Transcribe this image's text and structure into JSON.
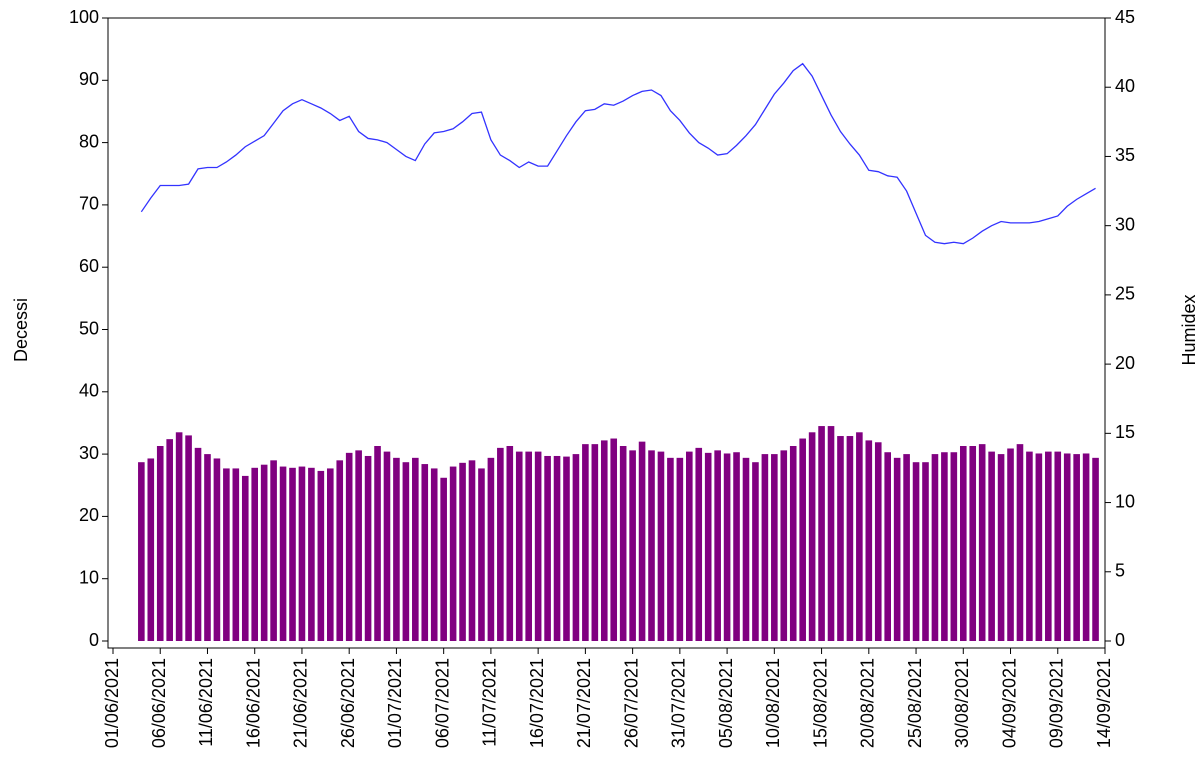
{
  "chart_data": {
    "type": "bar",
    "y_label": "Decessi",
    "y2_label": "Humidex",
    "xlim": [
      "01/06/2021",
      "14/09/2021"
    ],
    "xticks": [
      "01/06/2021",
      "06/06/2021",
      "11/06/2021",
      "16/06/2021",
      "21/06/2021",
      "26/06/2021",
      "01/07/2021",
      "06/07/2021",
      "11/07/2021",
      "16/07/2021",
      "21/07/2021",
      "26/07/2021",
      "31/07/2021",
      "05/08/2021",
      "10/08/2021",
      "15/08/2021",
      "20/08/2021",
      "25/08/2021",
      "30/08/2021",
      "04/09/2021",
      "09/09/2021",
      "14/09/2021"
    ],
    "ylim": [
      0,
      100
    ],
    "yticks": [
      0,
      10,
      20,
      30,
      40,
      50,
      60,
      70,
      80,
      90,
      100
    ],
    "y2lim": [
      0,
      45
    ],
    "y2ticks": [
      0,
      5,
      10,
      15,
      20,
      25,
      30,
      35,
      40,
      45
    ],
    "x": [
      "04/06/2021",
      "05/06/2021",
      "06/06/2021",
      "07/06/2021",
      "08/06/2021",
      "09/06/2021",
      "10/06/2021",
      "11/06/2021",
      "12/06/2021",
      "13/06/2021",
      "14/06/2021",
      "15/06/2021",
      "16/06/2021",
      "17/06/2021",
      "18/06/2021",
      "19/06/2021",
      "20/06/2021",
      "21/06/2021",
      "22/06/2021",
      "23/06/2021",
      "24/06/2021",
      "25/06/2021",
      "26/06/2021",
      "27/06/2021",
      "28/06/2021",
      "29/06/2021",
      "30/06/2021",
      "01/07/2021",
      "02/07/2021",
      "03/07/2021",
      "04/07/2021",
      "05/07/2021",
      "06/07/2021",
      "07/07/2021",
      "08/07/2021",
      "09/07/2021",
      "10/07/2021",
      "11/07/2021",
      "12/07/2021",
      "13/07/2021",
      "14/07/2021",
      "15/07/2021",
      "16/07/2021",
      "17/07/2021",
      "18/07/2021",
      "19/07/2021",
      "20/07/2021",
      "21/07/2021",
      "22/07/2021",
      "23/07/2021",
      "24/07/2021",
      "25/07/2021",
      "26/07/2021",
      "27/07/2021",
      "28/07/2021",
      "29/07/2021",
      "30/07/2021",
      "31/07/2021",
      "01/08/2021",
      "02/08/2021",
      "03/08/2021",
      "04/08/2021",
      "05/08/2021",
      "06/08/2021",
      "07/08/2021",
      "08/08/2021",
      "09/08/2021",
      "10/08/2021",
      "11/08/2021",
      "12/08/2021",
      "13/08/2021",
      "14/08/2021",
      "15/08/2021",
      "16/08/2021",
      "17/08/2021",
      "18/08/2021",
      "19/08/2021",
      "20/08/2021",
      "21/08/2021",
      "22/08/2021",
      "23/08/2021",
      "24/08/2021",
      "25/08/2021",
      "26/08/2021",
      "27/08/2021",
      "28/08/2021",
      "29/08/2021",
      "30/08/2021",
      "31/08/2021",
      "01/09/2021",
      "02/09/2021",
      "03/09/2021",
      "04/09/2021",
      "05/09/2021",
      "06/09/2021",
      "07/09/2021",
      "08/09/2021",
      "09/09/2021",
      "10/09/2021",
      "11/09/2021",
      "12/09/2021",
      "13/09/2021"
    ],
    "series": [
      {
        "type": "bar",
        "color": "#800080",
        "values": [
          28.7,
          29.3,
          31.3,
          32.4,
          33.5,
          33,
          31,
          30,
          29.3,
          27.7,
          27.7,
          26.5,
          27.8,
          28.3,
          29,
          28,
          27.8,
          28,
          27.8,
          27.3,
          27.7,
          29,
          30.2,
          30.6,
          29.7,
          31.3,
          30.4,
          29.4,
          28.7,
          29.4,
          28.4,
          27.7,
          26.2,
          28,
          28.6,
          29,
          27.7,
          29.4,
          31,
          31.3,
          30.4,
          30.4,
          30.4,
          29.7,
          29.7,
          29.6,
          30,
          31.6,
          31.6,
          32.2,
          32.5,
          31.3,
          30.6,
          32,
          30.6,
          30.4,
          29.4,
          29.4,
          30.4,
          31,
          30.2,
          30.6,
          30.1,
          30.3,
          29.4,
          28.7,
          30,
          30,
          30.6,
          31.3,
          32.5,
          33.5,
          34.5,
          34.5,
          32.9,
          32.9,
          33.5,
          32.2,
          31.9,
          30.3,
          29.4,
          30,
          28.7,
          28.7,
          30,
          30.3,
          30.3,
          31.3,
          31.3,
          31.6,
          30.4,
          30,
          30.9,
          31.6,
          30.4,
          30.1,
          30.4,
          30.4,
          30.1,
          30,
          30.1,
          29.4
        ]
      },
      {
        "type": "line",
        "axis": "y2",
        "color": "#3333ff",
        "values": [
          31.0,
          32.0,
          32.9,
          32.9,
          32.9,
          33.0,
          34.1,
          34.2,
          34.2,
          34.6,
          35.1,
          35.7,
          36.1,
          36.5,
          37.4,
          38.3,
          38.8,
          39.1,
          38.8,
          38.5,
          38.1,
          37.6,
          37.9,
          36.8,
          36.3,
          36.2,
          36.0,
          35.5,
          35.0,
          34.7,
          35.9,
          36.7,
          36.8,
          37.0,
          37.5,
          38.1,
          38.2,
          36.2,
          35.1,
          34.7,
          34.2,
          34.6,
          34.3,
          34.3,
          35.4,
          36.5,
          37.5,
          38.3,
          38.4,
          38.8,
          38.7,
          39.0,
          39.4,
          39.7,
          39.8,
          39.4,
          38.3,
          37.6,
          36.7,
          36.0,
          35.6,
          35.1,
          35.2,
          35.8,
          36.5,
          37.3,
          38.4,
          39.5,
          40.3,
          41.2,
          41.7,
          40.8,
          39.4,
          38.0,
          36.8,
          35.9,
          35.1,
          34.0,
          33.9,
          33.6,
          33.5,
          32.5,
          30.9,
          29.3,
          28.8,
          28.7,
          28.8,
          28.7,
          29.1,
          29.6,
          30.0,
          30.3,
          30.2,
          30.2,
          30.2,
          30.3,
          30.5,
          30.7,
          31.4,
          31.9,
          32.3,
          32.7
        ]
      }
    ]
  }
}
